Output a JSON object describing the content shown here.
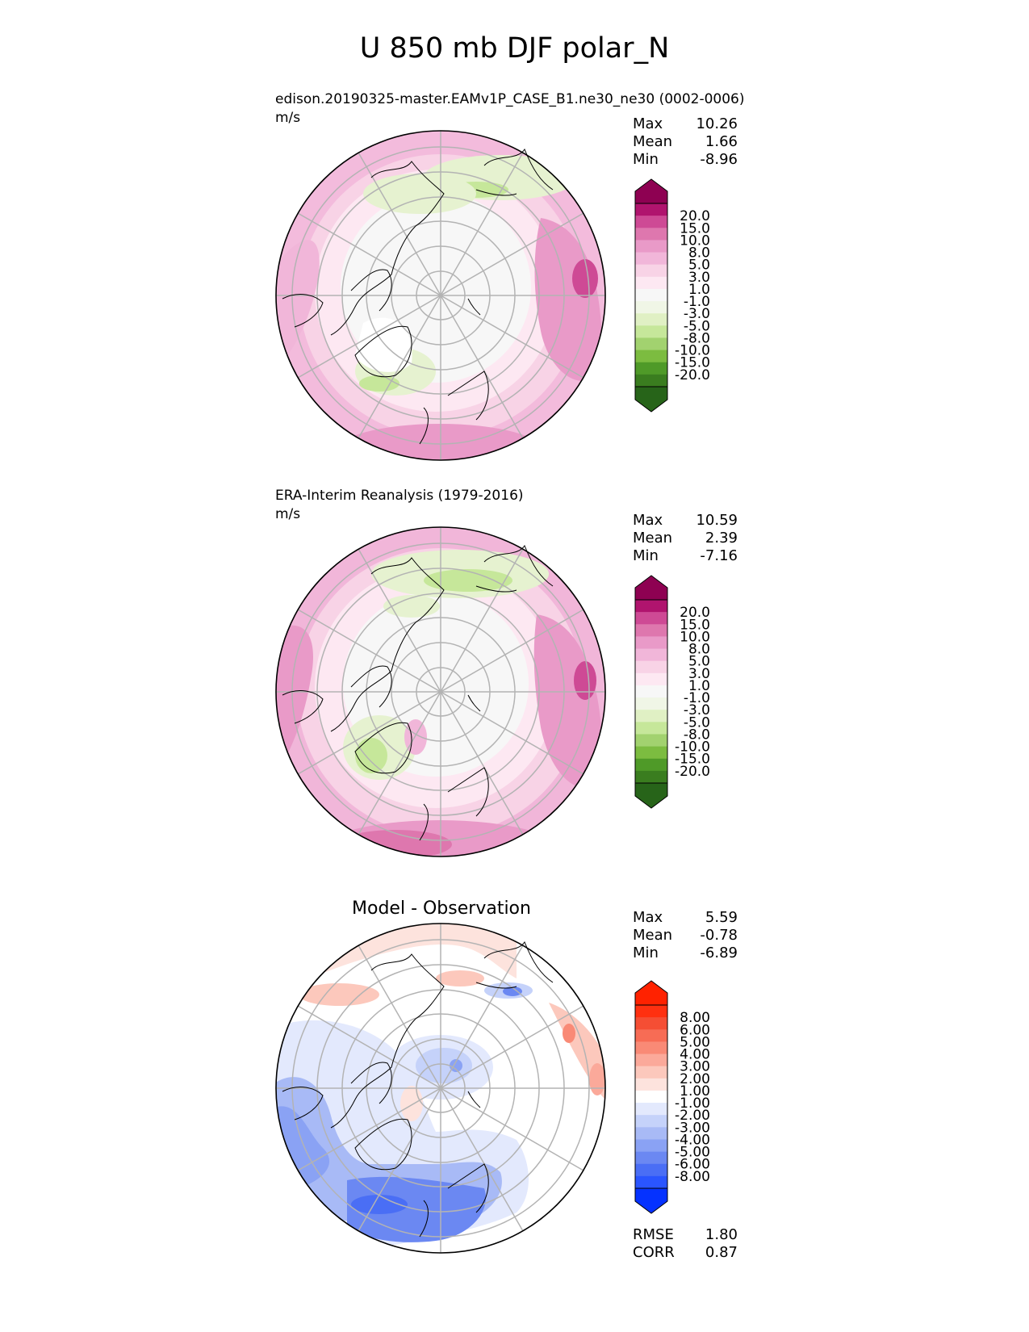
{
  "figure": {
    "title": "U 850 mb DJF polar_N"
  },
  "colors": {
    "model_levels": [
      "#276419",
      "#3a7d1f",
      "#4f9a28",
      "#7cbc40",
      "#a2d26f",
      "#c6e79a",
      "#e0f0c4",
      "#f0f6e6",
      "#f7f7f7",
      "#fde8f2",
      "#f8d3e6",
      "#f1b6d9",
      "#e99ac8",
      "#de77ae",
      "#ce4a95",
      "#b0146e",
      "#8e0152"
    ],
    "diff_levels": [
      "#0532ff",
      "#2a55ff",
      "#4a6ef5",
      "#6b88f2",
      "#8aa2f4",
      "#a8baf6",
      "#c5d2fa",
      "#e3e9fd",
      "#ffffff",
      "#fde3dd",
      "#fcc8bc",
      "#fba99a",
      "#f98a76",
      "#f76c55",
      "#f54e34",
      "#ff3010",
      "#ff2200"
    ]
  },
  "chart_data": [
    {
      "type": "heatmap",
      "title": "edison.20190325-master.EAMv1P_CASE_B1.ne30_ne30 (0002-0006)",
      "units": "m/s",
      "projection": "polar_N",
      "stats": {
        "max": "10.26",
        "mean": "1.66",
        "min": "-8.96"
      },
      "stat_labels": [
        "Max",
        "Mean",
        "Min"
      ],
      "colorbar_ticks": [
        "20.0",
        "15.0",
        "10.0",
        "8.0",
        "5.0",
        "3.0",
        "1.0",
        "-1.0",
        "-3.0",
        "-5.0",
        "-8.0",
        "-10.0",
        "-15.0",
        "-20.0"
      ]
    },
    {
      "type": "heatmap",
      "title": "ERA-Interim Reanalysis (1979-2016)",
      "units": "m/s",
      "projection": "polar_N",
      "stats": {
        "max": "10.59",
        "mean": "2.39",
        "min": "-7.16"
      },
      "stat_labels": [
        "Max",
        "Mean",
        "Min"
      ],
      "colorbar_ticks": [
        "20.0",
        "15.0",
        "10.0",
        "8.0",
        "5.0",
        "3.0",
        "1.0",
        "-1.0",
        "-3.0",
        "-5.0",
        "-8.0",
        "-10.0",
        "-15.0",
        "-20.0"
      ]
    },
    {
      "type": "heatmap",
      "title": "Model - Observation",
      "projection": "polar_N",
      "stats": {
        "max": "5.59",
        "mean": "-0.78",
        "min": "-6.89"
      },
      "stat_labels": [
        "Max",
        "Mean",
        "Min"
      ],
      "colorbar_ticks": [
        "8.00",
        "6.00",
        "5.00",
        "4.00",
        "3.00",
        "2.00",
        "1.00",
        "-1.00",
        "-2.00",
        "-3.00",
        "-4.00",
        "-5.00",
        "-6.00",
        "-8.00"
      ],
      "metrics": {
        "rmse_label": "RMSE",
        "rmse": "1.80",
        "corr_label": "CORR",
        "corr": "0.87"
      }
    }
  ]
}
